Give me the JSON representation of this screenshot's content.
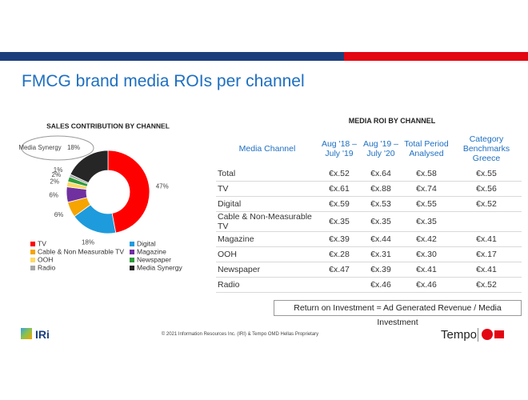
{
  "header": {
    "title": "FMCG brand media ROIs per channel"
  },
  "chart_data": {
    "type": "donut",
    "title": "SALES CONTRIBUTION BY CHANNEL",
    "categories": [
      "TV",
      "Digital",
      "Cable & Non Measurable TV",
      "Magazine",
      "OOH",
      "Newspaper",
      "Radio",
      "Media Synergy"
    ],
    "values": [
      47,
      18,
      6,
      6,
      2,
      2,
      1,
      18
    ],
    "value_labels": [
      "47%",
      "18%",
      "6%",
      "6%",
      "2%",
      "2%",
      "1%",
      "18%"
    ],
    "colors": [
      "#ff0000",
      "#1e9bdc",
      "#f5a400",
      "#7030a0",
      "#ffd966",
      "#2e9b3a",
      "#a6a6a6",
      "#262626"
    ],
    "legend": "bottom"
  },
  "table": {
    "title": "MEDIA ROI BY CHANNEL",
    "columns": [
      "Media Channel",
      "Aug '18 – July '19",
      "Aug '19 – July '20",
      "Total Period Analysed",
      "Category Benchmarks Greece"
    ],
    "rows": [
      [
        "Total",
        "€x.52",
        "€x.64",
        "€x.58",
        "€x.55"
      ],
      [
        "TV",
        "€x.61",
        "€x.88",
        "€x.74",
        "€x.56"
      ],
      [
        "Digital",
        "€x.59",
        "€x.53",
        "€x.55",
        "€x.52"
      ],
      [
        "Cable & Non-Measurable TV",
        "€x.35",
        "€x.35",
        "€x.35",
        null
      ],
      [
        "Magazine",
        "€x.39",
        "€x.44",
        "€x.42",
        "€x.41"
      ],
      [
        "OOH",
        "€x.28",
        "€x.31",
        "€x.30",
        "€x.17"
      ],
      [
        "Newspaper",
        "€x.47",
        "€x.39",
        "€x.41",
        "€x.41"
      ],
      [
        "Radio",
        null,
        "€x.46",
        "€x.46",
        "€x.52"
      ]
    ],
    "note": "Return on Investment = Ad Generated Revenue / Media Investment"
  },
  "footer": {
    "logo_left": "IRi",
    "copyright": "© 2021 Information Resources Inc. (IRI) & Tempo OMD Hellas Proprietary",
    "logo_right": "Tempo"
  }
}
